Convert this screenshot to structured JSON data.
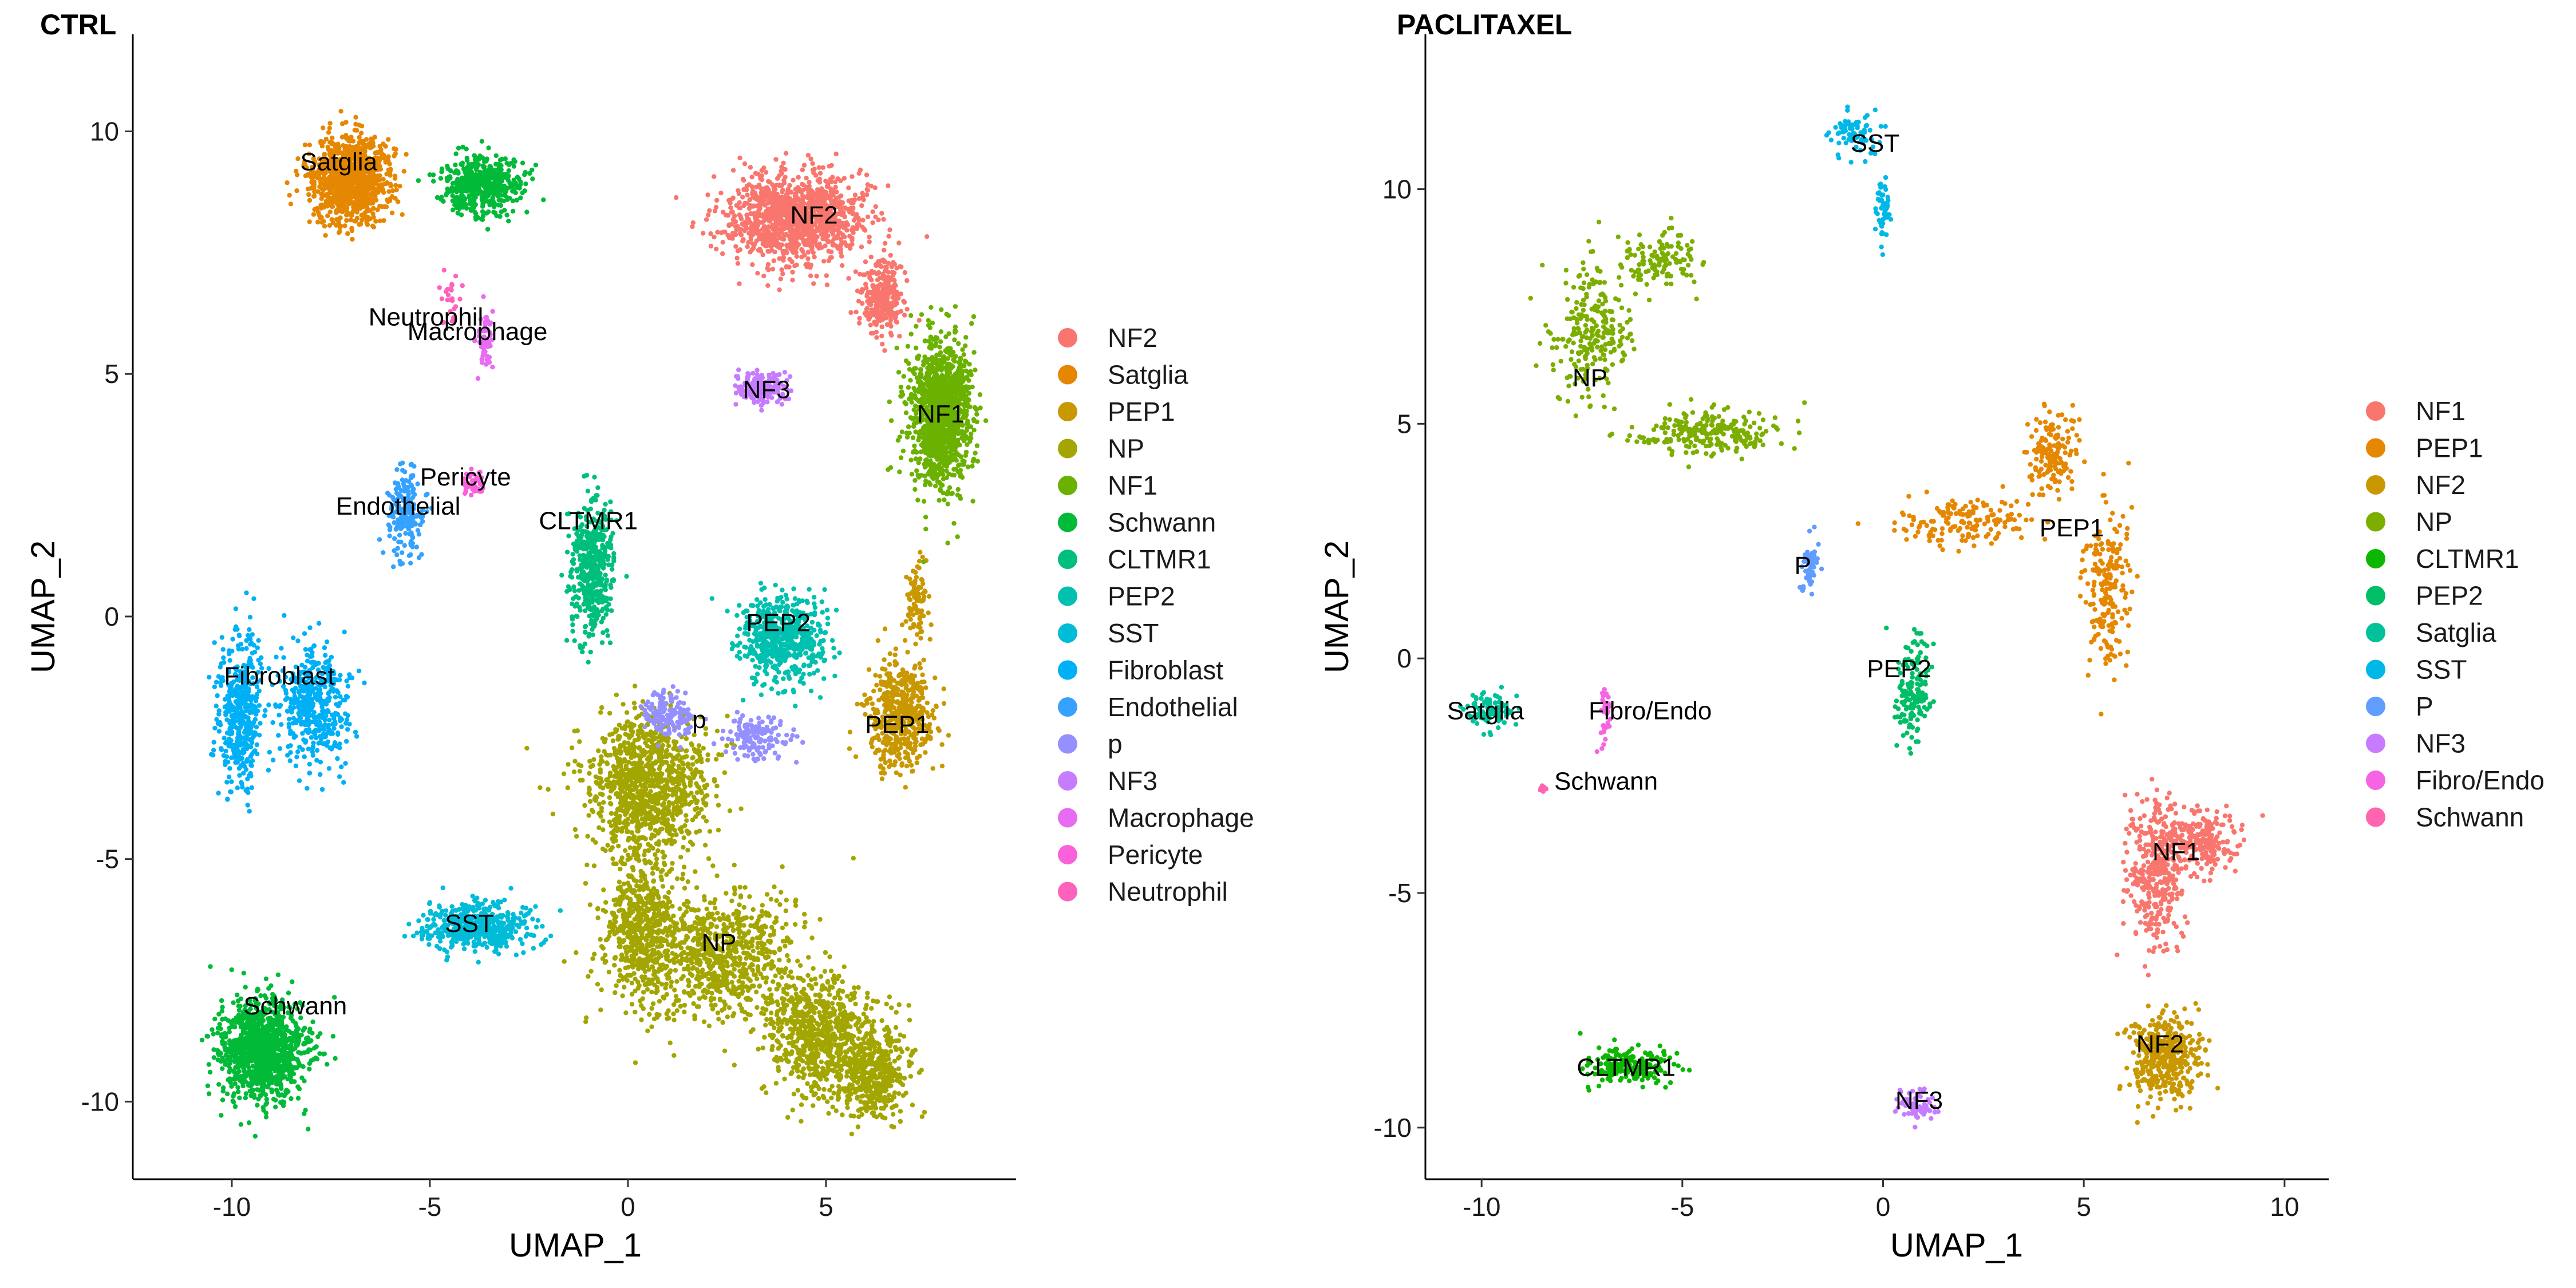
{
  "chart_data": [
    {
      "type": "scatter",
      "title": "CTRL",
      "xlabel": "UMAP_1",
      "ylabel": "UMAP_2",
      "xlim": [
        -12.5,
        9.8
      ],
      "ylim": [
        -11.6,
        12
      ],
      "xticks": [
        -10,
        -5,
        0,
        5
      ],
      "yticks": [
        -10,
        -5,
        0,
        5,
        10
      ],
      "grid": false,
      "legend_position": "right",
      "series": [
        {
          "name": "NF2",
          "color": "#F8766D",
          "n": 1500,
          "label_at": [
            4.7,
            8.1
          ],
          "blobs": [
            [
              4.2,
              8.2,
              1.5,
              0.8,
              0.6
            ],
            [
              6.4,
              6.6,
              0.5,
              0.7,
              0.15
            ]
          ]
        },
        {
          "name": "Satglia",
          "color": "#E58700",
          "n": 1000,
          "label_at": [
            -7.3,
            9.2
          ],
          "blobs": [
            [
              -7.0,
              9.0,
              0.9,
              0.8,
              1.0
            ]
          ]
        },
        {
          "name": "PEP1",
          "color": "#C99800",
          "n": 600,
          "label_at": [
            6.8,
            -2.4
          ],
          "blobs": [
            [
              6.9,
              -2.0,
              0.7,
              1.0,
              0.85
            ],
            [
              7.3,
              0.3,
              0.25,
              0.8,
              0.15
            ]
          ]
        },
        {
          "name": "NP",
          "color": "#A3A500",
          "n": 3500,
          "label_at": [
            2.3,
            -6.9
          ],
          "blobs": [
            [
              0.5,
              -3.5,
              1.4,
              1.3,
              0.3
            ],
            [
              2.3,
              -7.0,
              1.8,
              1.2,
              0.22
            ],
            [
              4.8,
              -8.6,
              1.2,
              1.2,
              0.2
            ],
            [
              6.2,
              -9.4,
              0.8,
              0.9,
              0.12
            ],
            [
              0.3,
              -6.4,
              0.8,
              1.4,
              0.16
            ]
          ]
        },
        {
          "name": "NF1",
          "color": "#6BB100",
          "n": 1200,
          "label_at": [
            7.9,
            4.0
          ],
          "blobs": [
            [
              7.9,
              4.2,
              0.7,
              1.4,
              1.0
            ]
          ]
        },
        {
          "name": "Schwann",
          "color": "#00BA38",
          "n": 1600,
          "label_at": [
            -8.4,
            -8.2
          ],
          "blobs": [
            [
              -9.2,
              -8.9,
              1.0,
              0.9,
              0.7
            ],
            [
              -3.7,
              8.9,
              0.9,
              0.55,
              0.3
            ]
          ]
        },
        {
          "name": "CLTMR1",
          "color": "#00BF7D",
          "n": 500,
          "label_at": [
            -1.0,
            1.8
          ],
          "blobs": [
            [
              -0.9,
              1.0,
              0.5,
              1.2,
              1.0
            ]
          ]
        },
        {
          "name": "PEP2",
          "color": "#00C0AF",
          "n": 600,
          "label_at": [
            3.8,
            -0.3
          ],
          "blobs": [
            [
              3.9,
              -0.4,
              1.0,
              0.8,
              1.0
            ]
          ]
        },
        {
          "name": "SST",
          "color": "#00BCD8",
          "n": 500,
          "label_at": [
            -4.0,
            -6.5
          ],
          "blobs": [
            [
              -3.8,
              -6.4,
              1.2,
              0.45,
              1.0
            ]
          ]
        },
        {
          "name": "Fibroblast",
          "color": "#00B0F6",
          "n": 900,
          "label_at": [
            -8.8,
            -1.4
          ],
          "blobs": [
            [
              -9.8,
              -2.0,
              0.5,
              1.4,
              0.5
            ],
            [
              -7.9,
              -1.8,
              0.8,
              1.1,
              0.5
            ]
          ]
        },
        {
          "name": "Endothelial",
          "color": "#35A2FF",
          "n": 200,
          "label_at": [
            -5.8,
            2.1
          ],
          "blobs": [
            [
              -5.6,
              2.1,
              0.4,
              0.8,
              1.0
            ]
          ]
        },
        {
          "name": "p",
          "color": "#9590FF",
          "n": 300,
          "label_at": [
            1.8,
            -2.3
          ],
          "blobs": [
            [
              1.0,
              -2.0,
              0.6,
              0.4,
              0.5
            ],
            [
              3.2,
              -2.5,
              0.7,
              0.4,
              0.5
            ]
          ]
        },
        {
          "name": "NF3",
          "color": "#C77CFF",
          "n": 200,
          "label_at": [
            3.5,
            4.5
          ],
          "blobs": [
            [
              3.4,
              4.7,
              0.6,
              0.3,
              1.0
            ]
          ]
        },
        {
          "name": "Macrophage",
          "color": "#E76BF3",
          "n": 60,
          "label_at": [
            -3.8,
            5.7
          ],
          "blobs": [
            [
              -3.6,
              5.7,
              0.2,
              0.5,
              1.0
            ]
          ]
        },
        {
          "name": "Pericyte",
          "color": "#FA62DB",
          "n": 40,
          "label_at": [
            -4.1,
            2.7
          ],
          "blobs": [
            [
              -3.9,
              2.7,
              0.25,
              0.3,
              1.0
            ]
          ]
        },
        {
          "name": "Neutrophil",
          "color": "#FF62BC",
          "n": 25,
          "label_at": [
            -5.1,
            6.0
          ],
          "blobs": [
            [
              -4.5,
              6.5,
              0.25,
              0.5,
              1.0
            ]
          ]
        }
      ]
    },
    {
      "type": "scatter",
      "title": "PACLITAXEL",
      "xlabel": "UMAP_1",
      "ylabel": "UMAP_2",
      "xlim": [
        -11.4,
        11.1
      ],
      "ylim": [
        -11.1,
        13.3
      ],
      "xticks": [
        -10,
        -5,
        0,
        5,
        10
      ],
      "yticks": [
        -10,
        -5,
        0,
        5,
        10
      ],
      "grid": false,
      "legend_position": "right",
      "series": [
        {
          "name": "NF1",
          "color": "#F8766D",
          "n": 600,
          "label_at": [
            7.3,
            -4.3
          ],
          "blobs": [
            [
              6.8,
              -4.5,
              0.6,
              1.4,
              0.6
            ],
            [
              8.0,
              -3.9,
              0.8,
              0.6,
              0.4
            ]
          ]
        },
        {
          "name": "PEP1",
          "color": "#E58700",
          "n": 500,
          "label_at": [
            4.7,
            2.6
          ],
          "blobs": [
            [
              2.0,
              2.9,
              1.6,
              0.5,
              0.3
            ],
            [
              4.3,
              4.4,
              0.6,
              0.8,
              0.3
            ],
            [
              5.6,
              1.5,
              0.5,
              1.5,
              0.4
            ]
          ]
        },
        {
          "name": "NF2",
          "color": "#C99800",
          "n": 400,
          "label_at": [
            6.9,
            -8.4
          ],
          "blobs": [
            [
              7.0,
              -8.5,
              0.8,
              0.8,
              1.0
            ]
          ]
        },
        {
          "name": "NP",
          "color": "#7CAE00",
          "n": 600,
          "label_at": [
            -7.3,
            5.8
          ],
          "blobs": [
            [
              -7.3,
              7.0,
              0.9,
              1.3,
              0.4
            ],
            [
              -4.4,
              4.8,
              1.6,
              0.4,
              0.4
            ],
            [
              -5.5,
              8.5,
              0.8,
              0.6,
              0.2
            ]
          ]
        },
        {
          "name": "CLTMR1",
          "color": "#0CB702",
          "n": 200,
          "label_at": [
            -6.4,
            -8.9
          ],
          "blobs": [
            [
              -6.3,
              -8.7,
              1.0,
              0.35,
              1.0
            ]
          ]
        },
        {
          "name": "PEP2",
          "color": "#00BE67",
          "n": 160,
          "label_at": [
            0.4,
            -0.4
          ],
          "blobs": [
            [
              0.8,
              -0.7,
              0.4,
              1.0,
              1.0
            ]
          ]
        },
        {
          "name": "Satglia",
          "color": "#00C19A",
          "n": 100,
          "label_at": [
            -9.9,
            -1.3
          ],
          "blobs": [
            [
              -9.8,
              -1.1,
              0.5,
              0.35,
              1.0
            ]
          ]
        },
        {
          "name": "SST",
          "color": "#00B8E7",
          "n": 130,
          "label_at": [
            -0.2,
            10.8
          ],
          "blobs": [
            [
              -0.7,
              11.2,
              0.6,
              0.4,
              0.6
            ],
            [
              0.0,
              9.6,
              0.15,
              0.6,
              0.4
            ]
          ]
        },
        {
          "name": "P",
          "color": "#619CFF",
          "n": 60,
          "label_at": [
            -2.0,
            1.8
          ],
          "blobs": [
            [
              -1.8,
              2.0,
              0.2,
              0.5,
              1.0
            ]
          ]
        },
        {
          "name": "NF3",
          "color": "#C77CFF",
          "n": 60,
          "label_at": [
            0.9,
            -9.6
          ],
          "blobs": [
            [
              0.9,
              -9.5,
              0.35,
              0.3,
              1.0
            ]
          ]
        },
        {
          "name": "Fibro/Endo",
          "color": "#F564E3",
          "n": 35,
          "label_at": [
            -5.8,
            -1.3
          ],
          "blobs": [
            [
              -6.9,
              -1.2,
              0.15,
              0.8,
              1.0
            ]
          ]
        },
        {
          "name": "Schwann",
          "color": "#FF64B0",
          "n": 8,
          "label_at": [
            -6.9,
            -2.8
          ],
          "blobs": [
            [
              -8.5,
              -2.8,
              0.1,
              0.1,
              1.0
            ]
          ]
        }
      ]
    }
  ]
}
